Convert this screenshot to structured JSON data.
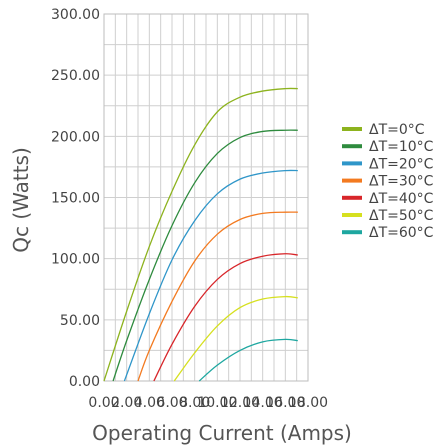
{
  "chart_data": {
    "type": "line",
    "xlabel": "Operating Current (Amps)",
    "ylabel": "Qc (Watts)",
    "xlim": [
      0,
      18
    ],
    "ylim": [
      0,
      300
    ],
    "x_ticks": [
      "0.00",
      "2.00",
      "4.00",
      "6.00",
      "8.00",
      "10.00",
      "12.00",
      "14.00",
      "16.00",
      "18.00"
    ],
    "y_ticks": [
      "0.00",
      "50.00",
      "100.00",
      "150.00",
      "200.00",
      "250.00",
      "300.00"
    ],
    "grid": true,
    "legend_position": "right",
    "series": [
      {
        "name": "ΔT=0°C",
        "color": "#8db31e",
        "x": [
          0,
          2,
          4,
          6,
          8,
          10,
          12,
          14,
          16,
          17.1
        ],
        "y": [
          0,
          57,
          110,
          155,
          193,
          220,
          232,
          237,
          239,
          239
        ]
      },
      {
        "name": "ΔT=10°C",
        "color": "#2e8b3e",
        "x": [
          0.8,
          2,
          4,
          6,
          8,
          10,
          12,
          14,
          16,
          17.1
        ],
        "y": [
          0,
          33,
          83,
          127,
          162,
          186,
          199,
          204,
          205,
          205
        ]
      },
      {
        "name": "ΔT=20°C",
        "color": "#2f96c9",
        "x": [
          1.8,
          4,
          6,
          8,
          10,
          12,
          14,
          16,
          17.1
        ],
        "y": [
          0,
          55,
          99,
          131,
          153,
          165,
          170,
          172,
          172
        ]
      },
      {
        "name": "ΔT=30°C",
        "color": "#f37a20",
        "x": [
          3.0,
          4,
          6,
          8,
          10,
          12,
          14,
          16,
          17.1
        ],
        "y": [
          0,
          25,
          65,
          98,
          120,
          132,
          137,
          138,
          138
        ]
      },
      {
        "name": "ΔT=40°C",
        "color": "#d8262a",
        "x": [
          4.4,
          6,
          8,
          10,
          12,
          14,
          16,
          17.1
        ],
        "y": [
          0,
          30,
          61,
          83,
          96,
          102,
          104,
          103
        ]
      },
      {
        "name": "ΔT=50°C",
        "color": "#d6e01f",
        "x": [
          6.2,
          8,
          10,
          12,
          14,
          16,
          17.1
        ],
        "y": [
          0,
          23,
          45,
          60,
          67,
          69,
          68
        ]
      },
      {
        "name": "ΔT=60°C",
        "color": "#1ea7a0",
        "x": [
          8.4,
          10,
          12,
          14,
          16,
          17.1
        ],
        "y": [
          0,
          13,
          25,
          32,
          34,
          33
        ]
      }
    ]
  }
}
